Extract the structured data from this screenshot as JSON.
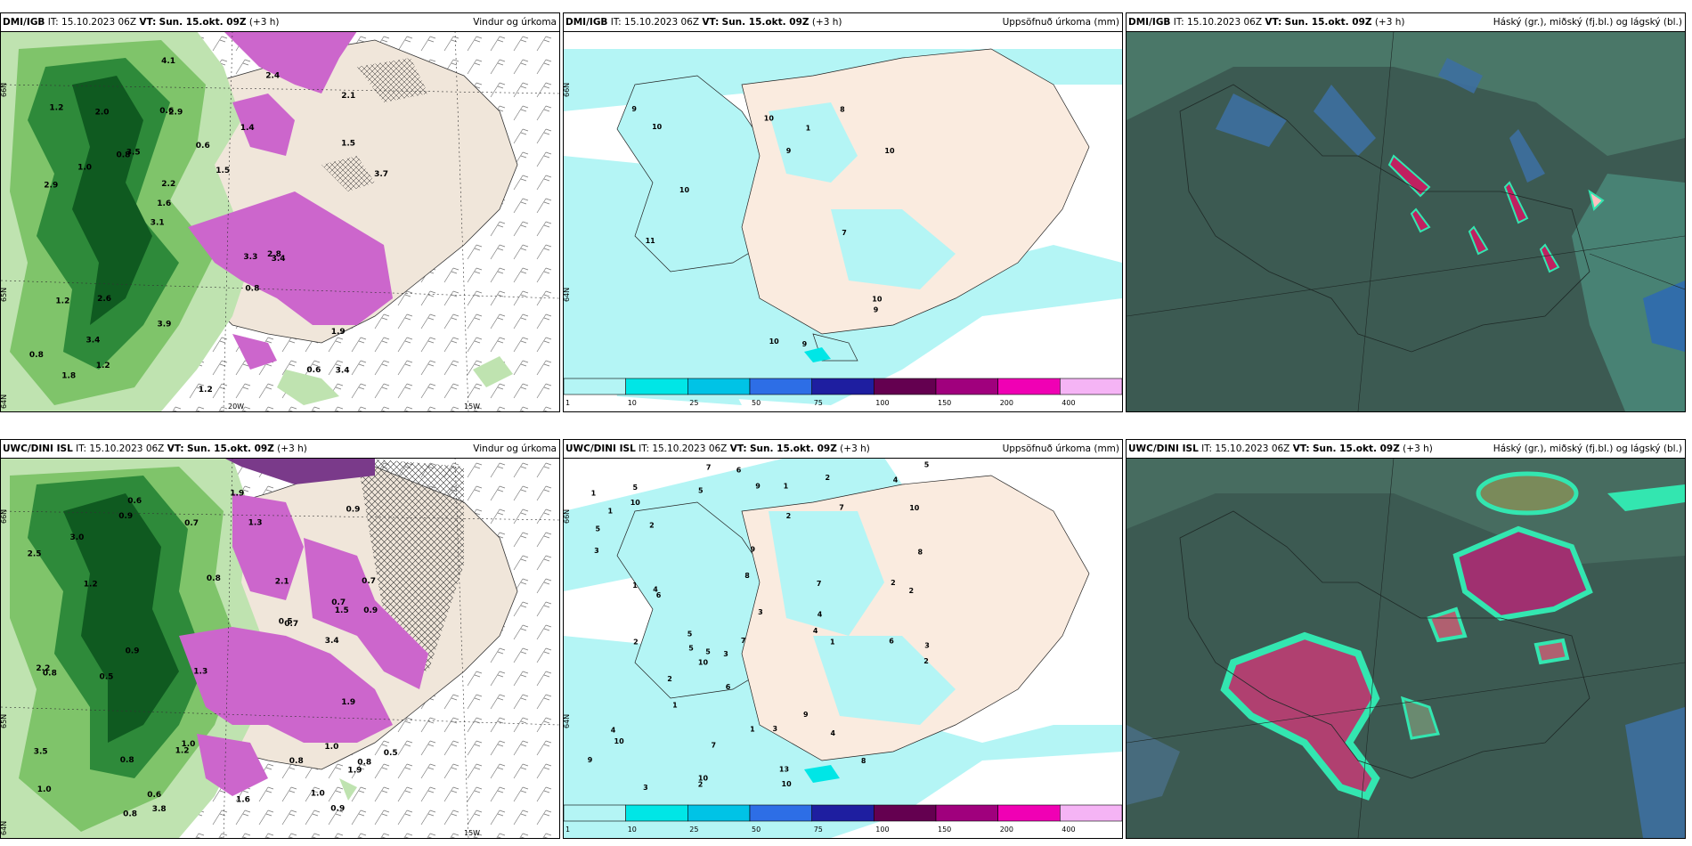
{
  "panels": [
    {
      "source": "DMI/IGB",
      "it": "IT: 15.10.2023 06Z",
      "vt_label": "VT:",
      "vt": "Sun. 15.okt. 09Z",
      "lead": "(+3 h)",
      "title": "Vindur og úrkoma"
    },
    {
      "source": "DMI/IGB",
      "it": "IT: 15.10.2023 06Z",
      "vt_label": "VT:",
      "vt": "Sun. 15.okt. 09Z",
      "lead": "(+3 h)",
      "title": "Uppsöfnuð úrkoma (mm)"
    },
    {
      "source": "DMI/IGB",
      "it": "IT: 15.10.2023 06Z",
      "vt_label": "VT:",
      "vt": "Sun. 15.okt. 09Z",
      "lead": "(+3 h)",
      "title": "Háský (gr.), miðský (fj.bl.) og lágský (bl.)"
    },
    {
      "source": "UWC/DINI ISL",
      "it": "IT: 15.10.2023 06Z",
      "vt_label": "VT:",
      "vt": "Sun. 15.okt. 09Z",
      "lead": "(+3 h)",
      "title": "Vindur og úrkoma"
    },
    {
      "source": "UWC/DINI ISL",
      "it": "IT: 15.10.2023 06Z",
      "vt_label": "VT:",
      "vt": "Sun. 15.okt. 09Z",
      "lead": "(+3 h)",
      "title": "Uppsöfnuð úrkoma (mm)"
    },
    {
      "source": "UWC/DINI ISL",
      "it": "IT: 15.10.2023 06Z",
      "vt_label": "VT:",
      "vt": "Sun. 15.okt. 09Z",
      "lead": "(+3 h)",
      "title": "Háský (gr.), miðský (fj.bl.) og lágský (bl.)"
    }
  ],
  "colorbar": {
    "ticks": [
      "1",
      "10",
      "25",
      "50",
      "75",
      "100",
      "150",
      "200",
      "400"
    ],
    "colors": [
      "#b4f5f5",
      "#00e6e6",
      "#00c3e6",
      "#2d6ee6",
      "#1e1ea0",
      "#640050",
      "#a0007d",
      "#f000b4",
      "#f5b4f5"
    ]
  },
  "axis_labels": {
    "wind_top": {
      "lat_a": "66N",
      "lat_b": "64N",
      "lat_c": "65N",
      "lon_a": "20W",
      "lon_b": "15W"
    },
    "wind_bottom": {
      "lat_a": "66N",
      "lat_b": "64N",
      "lat_c": "65N",
      "lon_b": "15W"
    },
    "precip_top": {
      "lat_a": "66N",
      "lat_b": "64N"
    },
    "precip_bottom": {
      "lat_a": "66N",
      "lat_b": "64N"
    }
  },
  "wind_top_values": [
    "3.4",
    "2.9",
    "2.1",
    "3.1",
    "1.4",
    "1.8",
    "0.6",
    "0.6",
    "1.2",
    "3.5",
    "0.8",
    "3.4",
    "2.9",
    "1.5",
    "3.4",
    "1.2",
    "4.1",
    "3.7",
    "3.3",
    "1.5",
    "1.6",
    "3.9",
    "2.2",
    "2.0",
    "2.4",
    "2.6",
    "0.6",
    "1.9",
    "2.8",
    "1.2",
    "0.8",
    "1.0",
    "0.8",
    "1.2"
  ],
  "wind_bottom_values": [
    "1.0",
    "0.7",
    "0.8",
    "0.8",
    "1.0",
    "0.6",
    "0.7",
    "0.8",
    "0.9",
    "1.2",
    "0.9",
    "2.5",
    "3.4",
    "3.8",
    "3.5",
    "3.0",
    "1.9",
    "0.9",
    "1.0",
    "1.5",
    "2.2",
    "0.8",
    "1.6",
    "0.5",
    "0.6",
    "1.2",
    "1.9",
    "1.3",
    "2.1",
    "0.5",
    "0.5",
    "0.8",
    "0.8",
    "1.3",
    "1.9",
    "1.0",
    "0.7",
    "0.7",
    "0.9",
    "0.9"
  ],
  "precip_top_values": [
    "9",
    "9",
    "9",
    "10",
    "10",
    "10",
    "9",
    "8",
    "10",
    "11",
    "10",
    "1",
    "7",
    "10"
  ],
  "precip_bottom_values": [
    "6",
    "5",
    "6",
    "9",
    "2",
    "5",
    "4",
    "10",
    "8",
    "2",
    "1",
    "10",
    "2",
    "9",
    "6",
    "7",
    "4",
    "3",
    "7",
    "10",
    "10",
    "7",
    "9",
    "5",
    "3",
    "2",
    "3",
    "1",
    "1",
    "6",
    "2",
    "10",
    "8",
    "5",
    "2",
    "5",
    "5",
    "9",
    "8",
    "10",
    "13",
    "7",
    "3",
    "7",
    "4",
    "1",
    "2",
    "3",
    "1",
    "4",
    "1",
    "4",
    "3",
    "2",
    "2",
    "4",
    "1",
    "5"
  ]
}
